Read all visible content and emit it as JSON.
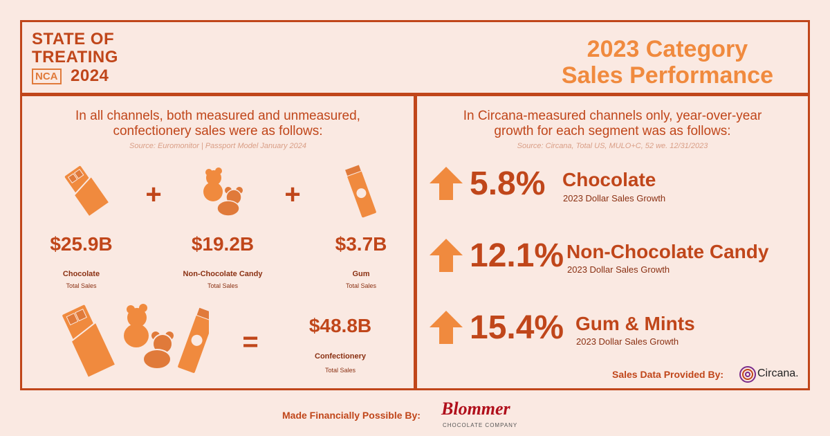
{
  "header": {
    "logo_line1": "STATE OF",
    "logo_line2": "TREATING",
    "logo_badge": "NCA",
    "logo_year": "2024",
    "title_line1": "2023 Category",
    "title_line2": "Sales Performance"
  },
  "left": {
    "intro_line1": "In all channels, both measured and unmeasured,",
    "intro_line2": "confectionery sales were as follows:",
    "source": "Source: Euromonitor | Passport Model January 2024",
    "plus": "+",
    "equals": "=",
    "items": [
      {
        "amount": "$25.9B",
        "label": "Chocolate",
        "sub": "Total Sales",
        "icon": "chocolate-bar-icon"
      },
      {
        "amount": "$19.2B",
        "label": "Non-Chocolate Candy",
        "sub": "Total Sales",
        "icon": "gummy-bears-icon"
      },
      {
        "amount": "$3.7B",
        "label": "Gum",
        "sub": "Total Sales",
        "icon": "gum-stick-icon"
      }
    ],
    "total": {
      "amount": "$48.8B",
      "label": "Confectionery",
      "sub": "Total Sales"
    }
  },
  "right": {
    "intro_line1": "In Circana-measured channels only, year-over-year",
    "intro_line2": "growth for each segment was as follows:",
    "source": "Source: Circana, Total US, MULO+C, 52 we. 12/31/2023",
    "rows": [
      {
        "pct": "5.8%",
        "segment": "Chocolate",
        "growth": "2023 Dollar Sales Growth"
      },
      {
        "pct": "12.1%",
        "segment": "Non-Chocolate Candy",
        "growth": "2023 Dollar Sales Growth"
      },
      {
        "pct": "15.4%",
        "segment": "Gum & Mints",
        "growth": "2023 Dollar Sales Growth"
      }
    ],
    "provided_by": "Sales Data Provided By:",
    "provider": "Circana."
  },
  "footer": {
    "made_possible": "Made Financially Possible By:",
    "sponsor": "Blommer",
    "sponsor_sub": "CHOCOLATE COMPANY"
  },
  "colors": {
    "accent": "#c0461a",
    "light_accent": "#f08a3e",
    "background": "#fae9e2",
    "circana": "#7a2a8a",
    "blommer": "#b0101c"
  }
}
